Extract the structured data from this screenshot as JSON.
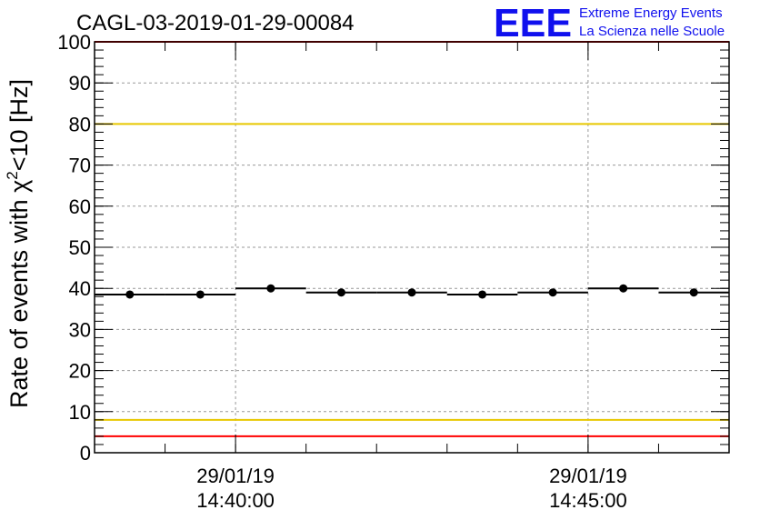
{
  "chart_data": {
    "type": "scatter",
    "title": "CAGL-03-2019-01-29-00084",
    "ylabel_main": "Rate of events with χ",
    "ylabel_sup": "2",
    "ylabel_tail": "<10 [Hz]",
    "ylim": [
      0,
      100
    ],
    "yticks": [
      "0",
      "10",
      "20",
      "30",
      "40",
      "50",
      "60",
      "70",
      "80",
      "90",
      "100"
    ],
    "xlim": [
      "2019-01-29 14:38:00",
      "2019-01-29 14:47:00"
    ],
    "xticks": [
      {
        "x": "2019-01-29 14:40:00",
        "date": "29/01/19",
        "time": "14:40:00"
      },
      {
        "x": "2019-01-29 14:45:00",
        "date": "29/01/19",
        "time": "14:45:00"
      }
    ],
    "grid": true,
    "bin_width_s": 60,
    "series": [
      {
        "x": [
          "2019-01-29 14:38:30",
          "2019-01-29 14:39:30",
          "2019-01-29 14:40:30",
          "2019-01-29 14:41:30",
          "2019-01-29 14:42:30",
          "2019-01-29 14:43:30",
          "2019-01-29 14:44:30",
          "2019-01-29 14:45:30",
          "2019-01-29 14:46:30"
        ],
        "y": [
          38.5,
          38.5,
          40.0,
          39.0,
          39.0,
          38.5,
          39.0,
          40.0,
          39.0
        ],
        "color": "#000000"
      }
    ],
    "reference_lines": [
      {
        "y": 100,
        "color": "#ff0000"
      },
      {
        "y": 80,
        "color": "#e8c800"
      },
      {
        "y": 8,
        "color": "#e8c800"
      },
      {
        "y": 4,
        "color": "#ff0000"
      }
    ]
  },
  "logo": {
    "mark": "EEE",
    "line1": "Extreme Energy Events",
    "line2": "La Scienza nelle Scuole",
    "color": "#1010ee"
  }
}
